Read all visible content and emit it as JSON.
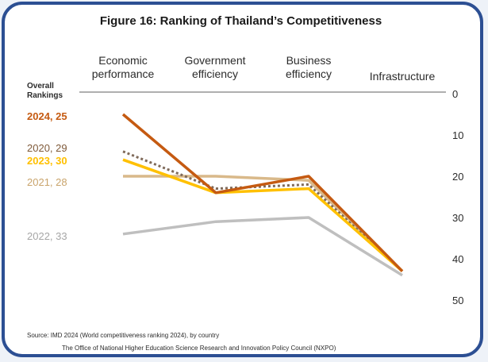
{
  "title": "Figure 16: Ranking of Thailand’s Competitiveness",
  "categories": [
    "Economic\nperformance",
    "Government\nefficiency",
    "Business\nefficiency",
    "Infrastructure"
  ],
  "overall_label": "Overall\nRankings",
  "series_labels": [
    {
      "text": "2024, 25",
      "color": "#c55a11",
      "bold": true
    },
    {
      "text": "2020, 29",
      "color": "#7f5a3a",
      "bold": false
    },
    {
      "text": "2023, 30",
      "color": "#ffc000",
      "bold": true
    },
    {
      "text": "2021, 28",
      "color": "#c9a46c",
      "bold": false
    },
    {
      "text": "2022, 33",
      "color": "#a6a6a6",
      "bold": false
    }
  ],
  "footer": {
    "source": "Source: IMD 2024 (World competitiveness ranking 2024), by country",
    "org": "The Office of National Higher Education Science Research and Innovation Policy Council (NXPO)"
  },
  "chart_data": {
    "type": "line",
    "title": "Figure 16: Ranking of Thailand’s Competitiveness",
    "categories": [
      "Economic performance",
      "Government efficiency",
      "Business efficiency",
      "Infrastructure"
    ],
    "ylim": [
      0,
      50
    ],
    "y_inverted": true,
    "y_ticks": [
      0,
      10,
      20,
      30,
      40,
      50
    ],
    "series": [
      {
        "name": "2022, 33",
        "color": "#bfbfbf",
        "dashed": false,
        "values": [
          34,
          31,
          30,
          44
        ]
      },
      {
        "name": "2021, 28",
        "color": "#d9b98a",
        "dashed": false,
        "values": [
          20,
          20,
          21,
          43
        ]
      },
      {
        "name": "2020, 29",
        "color": "#7f6a5a",
        "dashed": true,
        "values": [
          14,
          23,
          22,
          43
        ]
      },
      {
        "name": "2023, 30",
        "color": "#ffc000",
        "dashed": false,
        "values": [
          16,
          24,
          23,
          43
        ]
      },
      {
        "name": "2024, 25",
        "color": "#c55a11",
        "dashed": false,
        "values": [
          5,
          24,
          20,
          43
        ]
      }
    ]
  }
}
